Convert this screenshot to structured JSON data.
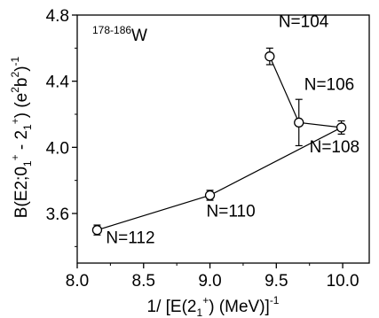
{
  "chart_data": {
    "type": "line",
    "title": "",
    "inset_label": {
      "sup": "178-186",
      "main": "W"
    },
    "xlabel": {
      "a": "1/ [E(2",
      "sub1": "1",
      "sup1": "+",
      "b": ") (MeV)]",
      "sup2": "-1"
    },
    "ylabel": {
      "a": "B(E2;0",
      "sub1": "1",
      "sup1": "+",
      "b": " - 2",
      "sub2": "1",
      "sup2": "+",
      "c": ") (e",
      "sup3": "2",
      "d": "b",
      "sup4": "2",
      "e": ")",
      "sup5": "-1"
    },
    "xlim": [
      8.0,
      10.2
    ],
    "ylim": [
      3.3,
      4.8
    ],
    "x_ticks": [
      "8.0",
      "8.5",
      "9.0",
      "9.5",
      "10.0"
    ],
    "x_tick_values": [
      8.0,
      8.5,
      9.0,
      9.5,
      10.0
    ],
    "y_ticks": [
      "3.6",
      "4.0",
      "4.4",
      "4.8"
    ],
    "y_tick_values": [
      3.6,
      4.0,
      4.4,
      4.8
    ],
    "grid": false,
    "series": [
      {
        "points": [
          {
            "x": 8.15,
            "y": 3.5,
            "err": 0.03,
            "label": "N=112"
          },
          {
            "x": 9.0,
            "y": 3.71,
            "err": 0.03,
            "label": "N=110"
          },
          {
            "x": 9.99,
            "y": 4.12,
            "err": 0.04,
            "label": "N=108"
          },
          {
            "x": 9.67,
            "y": 4.15,
            "err": 0.14,
            "label": "N=106"
          },
          {
            "x": 9.45,
            "y": 4.55,
            "err": 0.05,
            "label": "N=104"
          }
        ]
      }
    ]
  }
}
